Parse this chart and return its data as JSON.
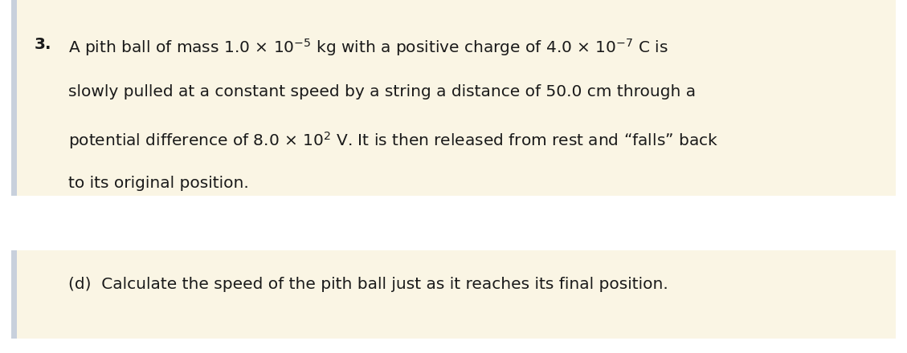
{
  "background_color": "#faf5e4",
  "white_bg": "#ffffff",
  "left_bar_color": "#c8d0dc",
  "font_size": 14.5,
  "bold_num": "3.",
  "line1a": "A pith ball of mass 1.0 ",
  "line1b": "×",
  "line1c": " 10",
  "line1_sup1": "−5",
  "line1d": " kg with a positive charge of 4.0 ",
  "line1e": "×",
  "line1f": " 10",
  "line1_sup2": "−7",
  "line1g": " C is",
  "line2": "slowly pulled at a constant speed by a string a distance of 50.0 cm through a",
  "line3a": "potential difference of 8.0 ",
  "line3b": "×",
  "line3c": " 10",
  "line3_sup": "2",
  "line3d": " V. It is then released from rest and “falls” back",
  "line4": "to its original position.",
  "bottom_text": "(d)  Calculate the speed of the pith ball just as it reaches its final position.",
  "text_color": "#1a1a1a"
}
